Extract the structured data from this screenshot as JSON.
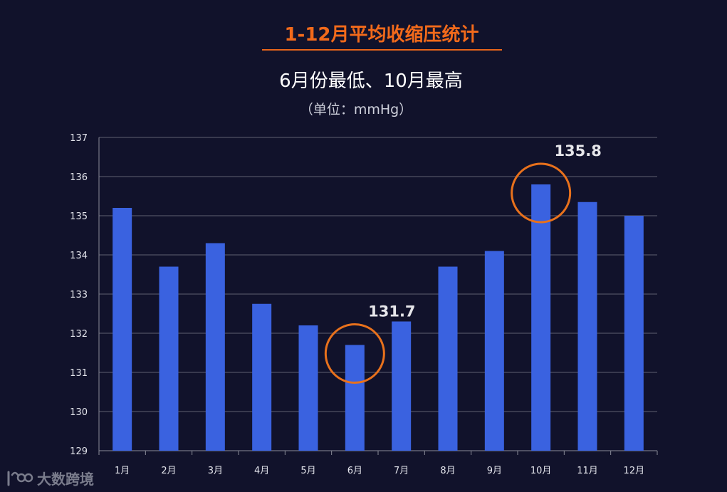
{
  "title": "1-12月平均收缩压统计",
  "subtitle": "6月份最低、10月最高",
  "unit": "（单位：mmHg）",
  "watermark": {
    "brand": "大数跨境",
    "logo_icon": "dashuju-logo-icon"
  },
  "colors": {
    "background": "#11122b",
    "bar": "#3a62e0",
    "title": "#f26a1b",
    "highlight": "#e8711c",
    "grid": "#5e6070",
    "annotation": "#e6e6ea"
  },
  "chart_data": {
    "type": "bar",
    "categories": [
      "1月",
      "2月",
      "3月",
      "4月",
      "5月",
      "6月",
      "7月",
      "8月",
      "9月",
      "10月",
      "11月",
      "12月"
    ],
    "values": [
      135.2,
      133.7,
      134.3,
      132.75,
      132.2,
      131.7,
      132.3,
      133.7,
      134.1,
      135.8,
      135.35,
      135.0
    ],
    "ylim": [
      129,
      137
    ],
    "yticks": [
      129,
      130,
      131,
      132,
      133,
      134,
      135,
      136,
      137
    ],
    "grid": true,
    "annotations": [
      {
        "category": "6月",
        "label": "131.7"
      },
      {
        "category": "10月",
        "label": "135.8"
      }
    ]
  }
}
